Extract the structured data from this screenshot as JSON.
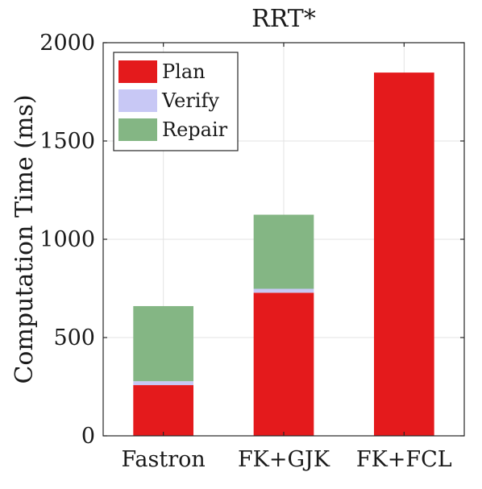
{
  "chart_data": {
    "type": "bar",
    "stacked": true,
    "title": "RRT*",
    "xlabel": "",
    "ylabel": "Computation Time (ms)",
    "ylim": [
      0,
      2000
    ],
    "yticks": [
      0,
      500,
      1000,
      1500,
      2000
    ],
    "grid": true,
    "legend_position": "top-left",
    "categories": [
      "Fastron",
      "FK+GJK",
      "FK+FCL"
    ],
    "series": [
      {
        "name": "Plan",
        "color": "#e41a1c",
        "values": [
          258,
          728,
          1848
        ]
      },
      {
        "name": "Verify",
        "color": "#c8c8f5",
        "values": [
          20,
          20,
          0
        ]
      },
      {
        "name": "Repair",
        "color": "#84b684",
        "values": [
          382,
          377,
          0
        ]
      }
    ]
  }
}
